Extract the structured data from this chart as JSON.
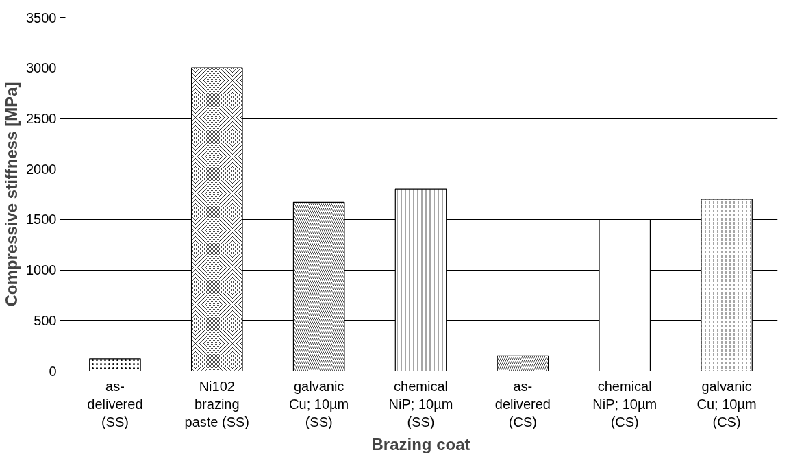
{
  "chart_data": {
    "type": "bar",
    "xlabel": "Brazing coat",
    "ylabel": "Compressive stiffness [MPa]",
    "categories": [
      "as-delivered (SS)",
      "Ni102 brazing paste (SS)",
      "galvanic Cu; 10µm (SS)",
      "chemical NiP; 10µm (SS)",
      "as-delivered (CS)",
      "chemical NiP; 10µm (CS)",
      "galvanic Cu; 10µm (CS)"
    ],
    "values": [
      120,
      3000,
      1670,
      1800,
      150,
      1500,
      1700
    ],
    "colors": [
      "#ffffff",
      "#ffffff",
      "#ffffff",
      "#ffffff",
      "#ffffff",
      "#ffffff",
      "#ffffff"
    ],
    "ylim": [
      0,
      3500
    ],
    "yticks": [
      0,
      500,
      1000,
      1500,
      2000,
      2500,
      3000,
      3500
    ],
    "grid": "y"
  }
}
